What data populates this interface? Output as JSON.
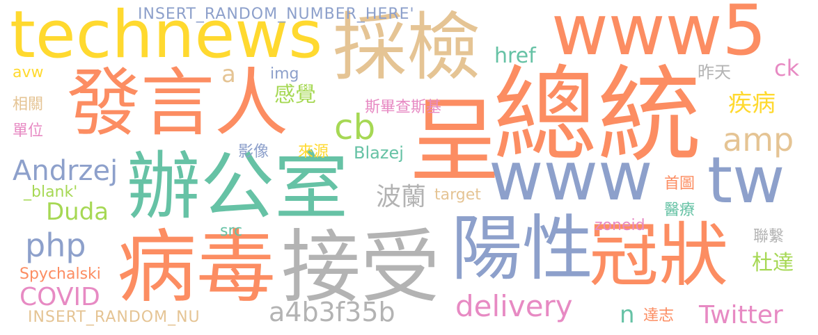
{
  "palette": {
    "orange": "#fc8d62",
    "green": "#66c2a5",
    "blue": "#8da0cb",
    "pink": "#e78ac3",
    "lime": "#a6d854",
    "yellow": "#ffd92f",
    "tan": "#e5c494",
    "gray": "#b3b3b3"
  },
  "words": {
    "zongtong": "總統",
    "cheng": "呈",
    "technews": "technews",
    "caijian": "採檢",
    "www5": "www5",
    "fayanren": "發言人",
    "bangongshi": "辦公室",
    "www": "www",
    "tw": "tw",
    "bingdu": "病毒",
    "jieshou": "接受",
    "yangxing": "陽性",
    "guanzhuang": "冠狀",
    "insert1": "INSERT_RANDOM_NUMBER_HERE'",
    "href": "href",
    "a": "a",
    "img": "img",
    "avw": "avw",
    "ck": "ck",
    "zuotian": "昨天",
    "xiangguan": "相關",
    "danwei": "單位",
    "ganjue": "感覺",
    "sibiechasiji": "斯畢查斯基",
    "jibing": "疾病",
    "cb": "cb",
    "amp": "amp",
    "yingxiang": "影像",
    "laiyuan": "來源",
    "blazej": "Blazej",
    "andrzej": "Andrzej",
    "blank": "_blank'",
    "duda": "Duda",
    "bolan": "波蘭",
    "target": "target",
    "shoutu": "首圖",
    "yiliao": "醫療",
    "zoneid": "zoneid",
    "src": "src",
    "php": "php",
    "lianxi": "聯繫",
    "duda_zh": "杜達",
    "spychalski": "Spychalski",
    "covid": "COVID",
    "a4b3f35b": "a4b3f35b",
    "delivery": "delivery",
    "insert2": "INSERT_RANDOM_NU",
    "n": "n",
    "dazhi": "達志",
    "twitter": "Twitter"
  }
}
